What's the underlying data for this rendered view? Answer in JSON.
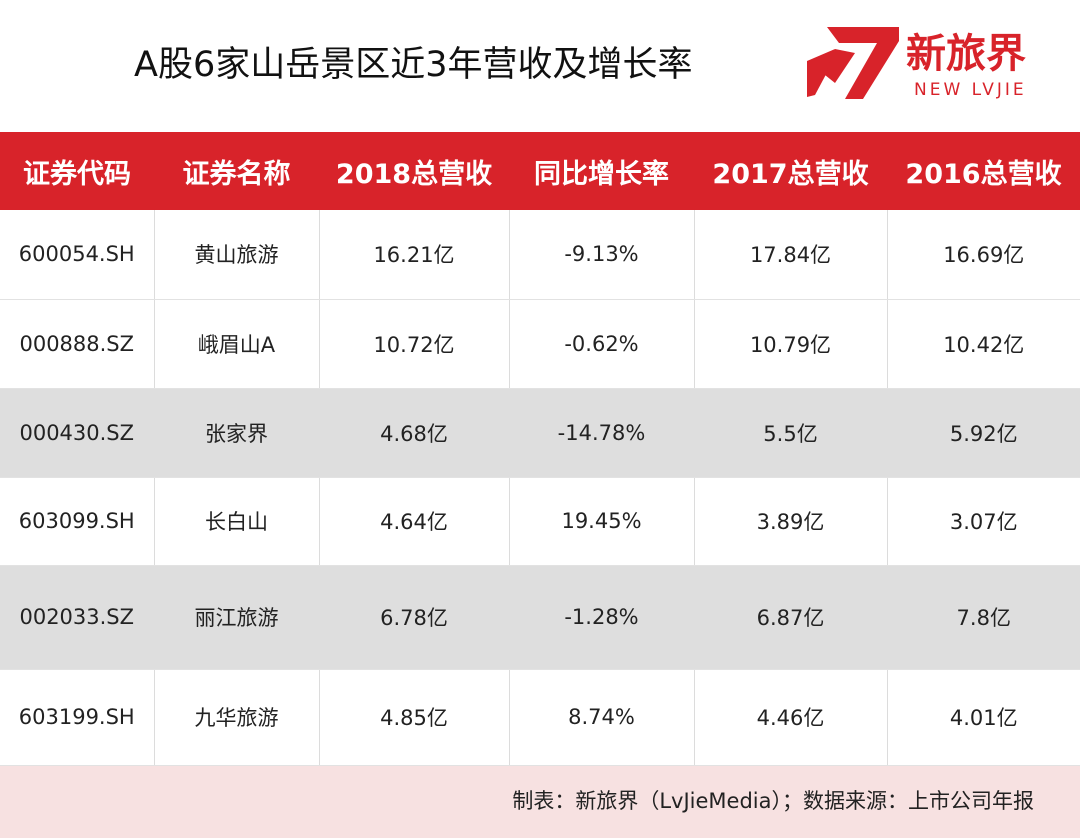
{
  "title": "A股6家山岳景区近3年营收及增长率",
  "logo": {
    "name_cn": "新旅界",
    "name_en": "NEW LVJIE",
    "brand_color": "#d8232a"
  },
  "table": {
    "headers": [
      "证券代码",
      "证券名称",
      "2018总营收",
      "同比增长率",
      "2017总营收",
      "2016总营收"
    ],
    "rows": [
      {
        "code": "600054.SH",
        "name": "黄山旅游",
        "rev2018": "16.21亿",
        "growth": "-9.13%",
        "rev2017": "17.84亿",
        "rev2016": "16.69亿"
      },
      {
        "code": "000888.SZ",
        "name": "峨眉山A",
        "rev2018": "10.72亿",
        "growth": "-0.62%",
        "rev2017": "10.79亿",
        "rev2016": "10.42亿"
      },
      {
        "code": "000430.SZ",
        "name": "张家界",
        "rev2018": "4.68亿",
        "growth": "-14.78%",
        "rev2017": "5.5亿",
        "rev2016": "5.92亿"
      },
      {
        "code": "603099.SH",
        "name": "长白山",
        "rev2018": "4.64亿",
        "growth": "19.45%",
        "rev2017": "3.89亿",
        "rev2016": "3.07亿"
      },
      {
        "code": "002033.SZ",
        "name": "丽江旅游",
        "rev2018": "6.78亿",
        "growth": "-1.28%",
        "rev2017": "6.87亿",
        "rev2016": "7.8亿"
      },
      {
        "code": "603199.SH",
        "name": "九华旅游",
        "rev2018": "4.85亿",
        "growth": "8.74%",
        "rev2017": "4.46亿",
        "rev2016": "4.01亿"
      }
    ],
    "shaded_rows": [
      2,
      4
    ],
    "header_color": "#d8232a",
    "shade_color": "#dedede"
  },
  "footer": {
    "text": "制表：新旅界（LvJieMedia）；数据来源：上市公司年报",
    "background": "#f7e1e1"
  }
}
